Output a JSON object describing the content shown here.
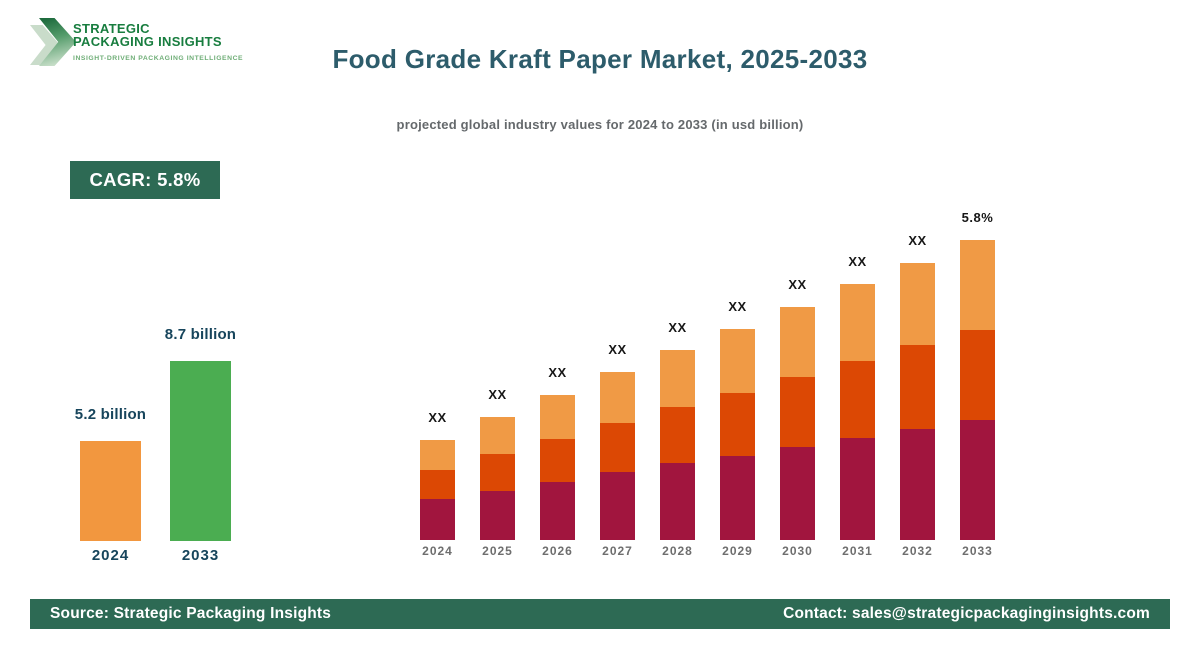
{
  "logo": {
    "line1": "STRATEGIC",
    "line2": "PACKAGING INSIGHTS",
    "tagline": "INSIGHT-DRIVEN PACKAGING INTELLIGENCE",
    "brand_green": "#187d3f",
    "tagline_green": "#6fae77"
  },
  "header": {
    "title": "Food Grade Kraft Paper Market, 2025-2033",
    "subtitle": "projected global industry values for 2024 to 2033 (in usd billion)",
    "cagr_badge": "CAGR: 5.8%",
    "title_color": "#2d5c6b"
  },
  "theme": {
    "dark_green": "#2d6a54",
    "label_navy": "#17455c",
    "axis_gray": "#6e6e6e"
  },
  "footer": {
    "source": "Source: Strategic Packaging Insights",
    "contact": "Contact: sales@strategicpackaginginsights.com"
  },
  "chart_data": [
    {
      "name": "summary-growth",
      "type": "bar",
      "title": "2024 vs 2033 market size",
      "categories": [
        "2024",
        "2033"
      ],
      "values": [
        5.2,
        8.7
      ],
      "value_labels": [
        "5.2 billion",
        "8.7 billion"
      ],
      "unit": "usd billion",
      "colors": [
        "#f2973f",
        "#4bad51"
      ],
      "grid": false,
      "legend": false
    },
    {
      "name": "projection-2024-2033",
      "type": "bar",
      "stacked": true,
      "title": "Food Grade Kraft Paper Market stacked projection",
      "categories": [
        "2024",
        "2025",
        "2026",
        "2027",
        "2028",
        "2029",
        "2030",
        "2031",
        "2032",
        "2033"
      ],
      "bar_labels": [
        "XX",
        "XX",
        "XX",
        "XX",
        "XX",
        "XX",
        "XX",
        "XX",
        "XX",
        "5.8%"
      ],
      "values_hidden": true,
      "unit": "relative height units (numeric values masked as XX on chart)",
      "series": [
        {
          "name": "segment-bottom",
          "color": "#a1153e",
          "values": [
            41,
            49,
            58,
            68,
            77,
            84,
            93,
            102,
            111,
            120
          ]
        },
        {
          "name": "segment-middle",
          "color": "#dc4804",
          "values": [
            29,
            37,
            43,
            49,
            56,
            63,
            70,
            77,
            84,
            90
          ]
        },
        {
          "name": "segment-top",
          "color": "#f09a45",
          "values": [
            30,
            37,
            44,
            51,
            57,
            64,
            70,
            77,
            82,
            90
          ]
        }
      ],
      "grid": false,
      "legend": false
    }
  ]
}
